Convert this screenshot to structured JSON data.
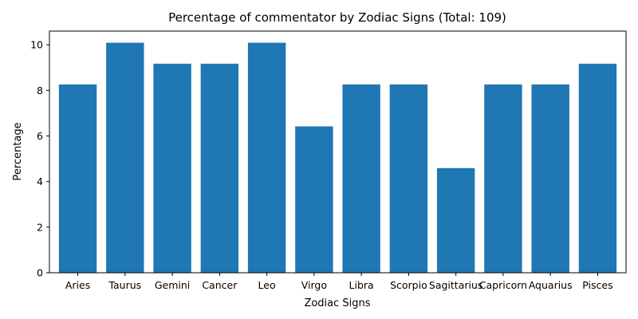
{
  "chart_data": {
    "type": "bar",
    "title": "Percentage of commentator by Zodiac Signs (Total: 109)",
    "xlabel": "Zodiac Signs",
    "ylabel": "Percentage",
    "categories": [
      "Aries",
      "Taurus",
      "Gemini",
      "Cancer",
      "Leo",
      "Virgo",
      "Libra",
      "Scorpio",
      "Sagittarius",
      "Capricorn",
      "Aquarius",
      "Pisces"
    ],
    "values": [
      8.26,
      10.09,
      9.17,
      9.17,
      10.09,
      6.42,
      8.26,
      8.26,
      4.59,
      8.26,
      8.26,
      9.17
    ],
    "ylim": [
      0,
      10.6
    ],
    "yticks": [
      0,
      2,
      4,
      6,
      8,
      10
    ],
    "grid": false,
    "bar_color": "#1f77b4"
  }
}
